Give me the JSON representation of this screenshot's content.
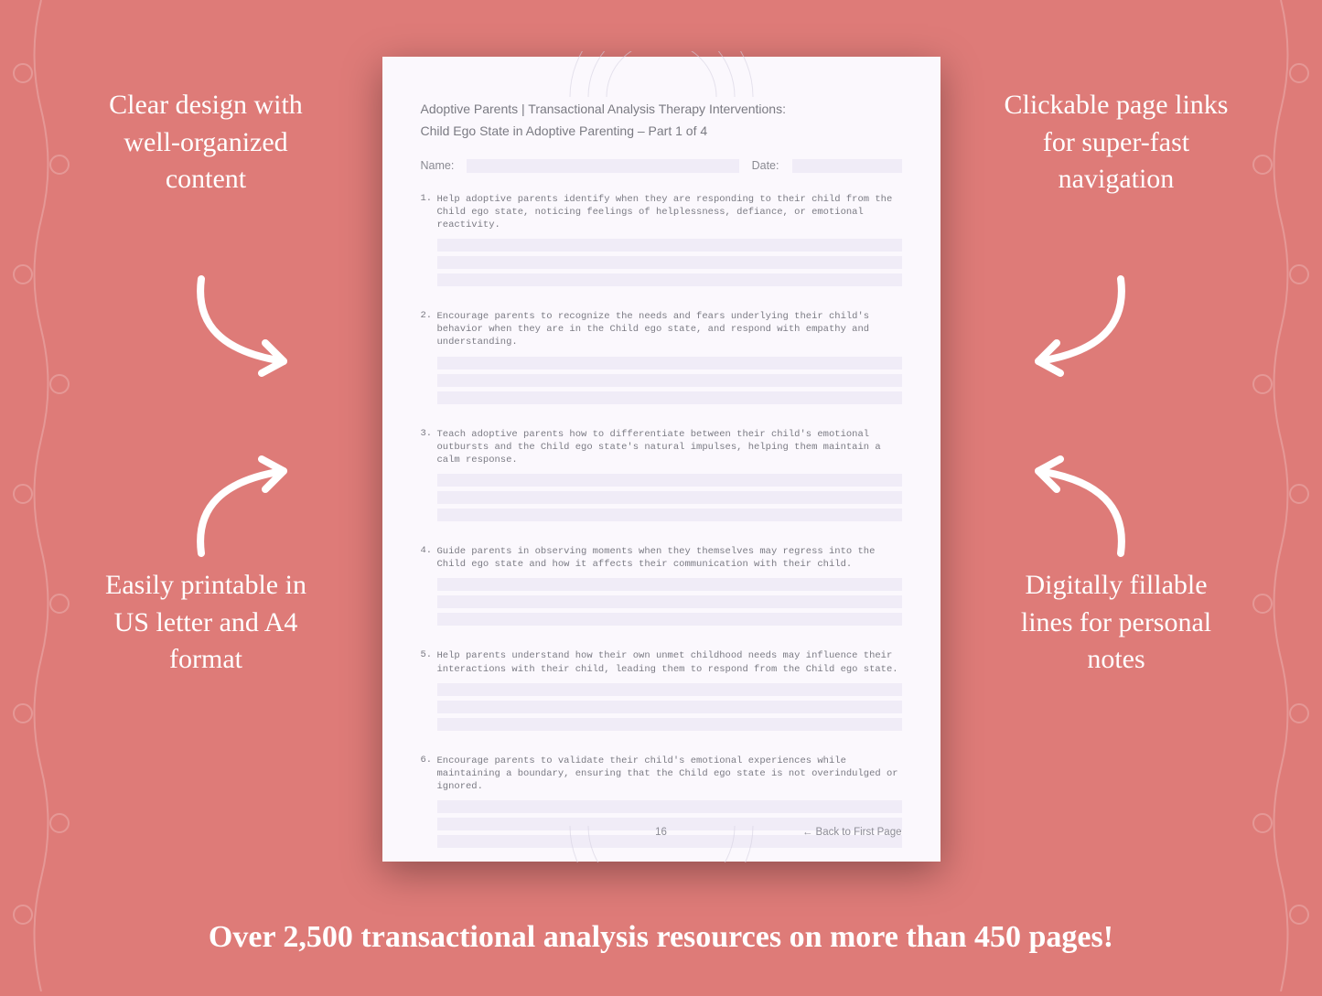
{
  "background_color": "#de7b78",
  "accent_text_color": "#ffffff",
  "callouts": {
    "top_left": "Clear design with well-organized content",
    "top_right": "Clickable page links for super-fast navigation",
    "bottom_left": "Easily printable in US letter and A4 format",
    "bottom_right": "Digitally fillable lines for personal notes"
  },
  "banner": "Over 2,500 transactional analysis resources on more than 450 pages!",
  "worksheet": {
    "page_bg": "#fbf8fd",
    "line_fill": "#f0ecf7",
    "title_line1": "Adoptive Parents | Transactional Analysis Therapy Interventions:",
    "title_line2": "Child Ego State in Adoptive Parenting   – Part 1 of 4",
    "name_label": "Name:",
    "date_label": "Date:",
    "page_number": "16",
    "back_link": "← Back to First Page",
    "items": [
      "Help adoptive parents identify when they are responding to their child from the Child ego state, noticing feelings of helplessness, defiance, or emotional reactivity.",
      "Encourage parents to recognize the needs and fears underlying their child's behavior when they are in the Child ego state, and respond with empathy and understanding.",
      "Teach adoptive parents how to differentiate between their child's emotional outbursts and the Child ego state's natural impulses, helping them maintain a calm response.",
      "Guide parents in observing moments when they themselves may regress into the Child ego state and how it affects their communication with their child.",
      "Help parents understand how their own unmet childhood needs may influence their interactions with their child, leading them to respond from the Child ego state.",
      "Encourage parents to validate their child's emotional experiences while maintaining a boundary, ensuring that the Child ego state is not overindulged or ignored."
    ]
  }
}
